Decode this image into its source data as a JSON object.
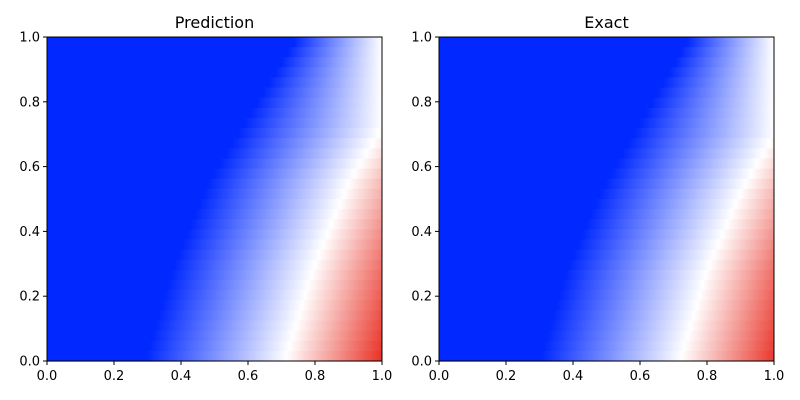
{
  "chart_data": [
    {
      "type": "heatmap",
      "title": "Prediction",
      "xlabel": "",
      "ylabel": "",
      "xlim": [
        0.0,
        1.0
      ],
      "ylim": [
        0.0,
        1.0
      ],
      "xticks": [
        "0.0",
        "0.2",
        "0.4",
        "0.6",
        "0.8",
        "1.0"
      ],
      "yticks": [
        "0.0",
        "0.2",
        "0.4",
        "0.6",
        "0.8",
        "1.0"
      ],
      "colormap": [
        "#0028ff",
        "#ffffff",
        "#e8291e"
      ],
      "zero_contour": [
        [
          0.71,
          0.0
        ],
        [
          0.8,
          0.3
        ],
        [
          0.9,
          0.55
        ],
        [
          1.0,
          0.72
        ]
      ],
      "grid": false
    },
    {
      "type": "heatmap",
      "title": "Exact",
      "xlabel": "",
      "ylabel": "",
      "xlim": [
        0.0,
        1.0
      ],
      "ylim": [
        0.0,
        1.0
      ],
      "xticks": [
        "0.0",
        "0.2",
        "0.4",
        "0.6",
        "0.8",
        "1.0"
      ],
      "yticks": [
        "0.0",
        "0.2",
        "0.4",
        "0.6",
        "0.8",
        "1.0"
      ],
      "colormap": [
        "#0028ff",
        "#ffffff",
        "#e8291e"
      ],
      "zero_contour": [
        [
          0.72,
          0.0
        ],
        [
          0.8,
          0.28
        ],
        [
          0.9,
          0.52
        ],
        [
          1.0,
          0.7
        ]
      ],
      "grid": false
    }
  ]
}
